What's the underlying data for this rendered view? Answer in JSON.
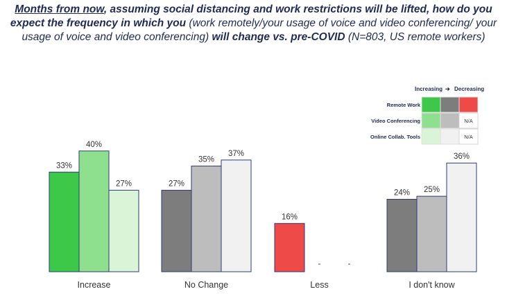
{
  "title": {
    "part1_underlined": "Months from now",
    "part2_bold": ", assuming social distancing and work restrictions will be lifted, how do you expect the frequency in which you",
    "part3_normal": " (work remotely/your usage of voice and video conferencing/ your usage of voice and video conferencing)",
    "part4_bold": " will change vs. pre-COVID",
    "part5_normal": " (N=803, US remote workers)"
  },
  "legend": {
    "header_left": "Increasing",
    "header_right": "Decreasing",
    "arrow_glyph": "➔",
    "na_text": "N/A",
    "rows": [
      {
        "label": "Remote Work",
        "swatches": [
          "#3dc84a",
          "#7d7d7d",
          "#ee4a48"
        ]
      },
      {
        "label": "Video Conferencing",
        "swatches": [
          "#8fe08e",
          "#bdbdbd",
          "N/A"
        ]
      },
      {
        "label": "Online Collab. Tools",
        "swatches": [
          "#daf4d8",
          "#f1f1f1",
          "N/A"
        ]
      }
    ]
  },
  "chart_data": {
    "type": "bar",
    "categories": [
      "Increase",
      "No Change",
      "Less",
      "I don't know"
    ],
    "series": [
      {
        "name": "Remote Work",
        "values": [
          33,
          27,
          16,
          24
        ]
      },
      {
        "name": "Video Conferencing",
        "values": [
          40,
          35,
          null,
          25
        ]
      },
      {
        "name": "Online Collab. Tools",
        "values": [
          27,
          37,
          null,
          36
        ]
      }
    ],
    "missing_label": "-",
    "value_suffix": "%",
    "colors": {
      "Increase": [
        "#3dc84a",
        "#8fe08e",
        "#daf4d8"
      ],
      "No Change": [
        "#7d7d7d",
        "#bdbdbd",
        "#f1f1f1"
      ],
      "Less": [
        "#ee4a48",
        "#ffffff",
        "#ffffff"
      ],
      "I don't know": [
        "#7d7d7d",
        "#bdbdbd",
        "#f1f1f1"
      ]
    },
    "bar_edge_color": "#2e3a78",
    "ylim": [
      0,
      45
    ],
    "title": "",
    "xlabel": "",
    "ylabel": "",
    "legend_position": "top-right",
    "grid": false
  }
}
